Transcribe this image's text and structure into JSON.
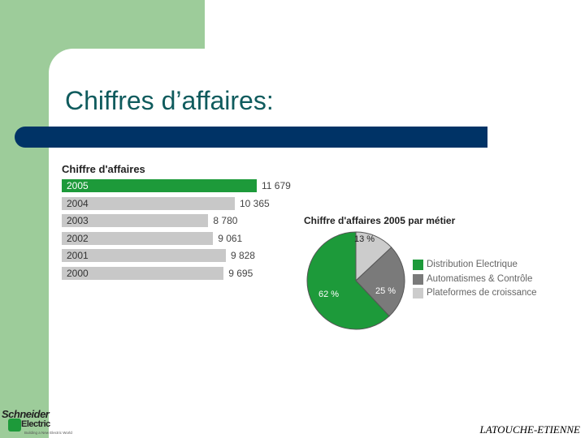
{
  "slide": {
    "title": "Chiffres d’affaires:",
    "author": "LATOUCHE-ETIENNE"
  },
  "logo": {
    "line1": "Schneider",
    "line2": "Electric",
    "tagline": "Building a New Electric World"
  },
  "colors": {
    "green_block": "#9dcc9a",
    "title": "#0f5b5d",
    "navy_bar": "#003366",
    "highlight_bar": "#1d9a3a",
    "grey_bar": "#c8c8c8"
  },
  "chart_data": [
    {
      "type": "bar",
      "orientation": "horizontal",
      "title": "Chiffre d'affaires",
      "categories": [
        "2005",
        "2004",
        "2003",
        "2002",
        "2001",
        "2000"
      ],
      "values": [
        11679,
        10365,
        8780,
        9061,
        9828,
        9695
      ],
      "value_labels": [
        "11 679",
        "10 365",
        "8 780",
        "9 061",
        "9 828",
        "9 695"
      ],
      "highlight": "2005",
      "xlim": [
        0,
        11679
      ],
      "grid": false
    },
    {
      "type": "pie",
      "title": "Chiffre d'affaires 2005 par métier",
      "slices": [
        {
          "name": "Distribution Electrique",
          "value": 62,
          "label": "62 %",
          "color": "#1d9a3a"
        },
        {
          "name": "Automatismes & Contrôle",
          "value": 25,
          "label": "25 %",
          "color": "#7a7a7a"
        },
        {
          "name": "Plateformes de croissance",
          "value": 13,
          "label": "13 %",
          "color": "#cccccc"
        }
      ],
      "legend_position": "right"
    }
  ]
}
